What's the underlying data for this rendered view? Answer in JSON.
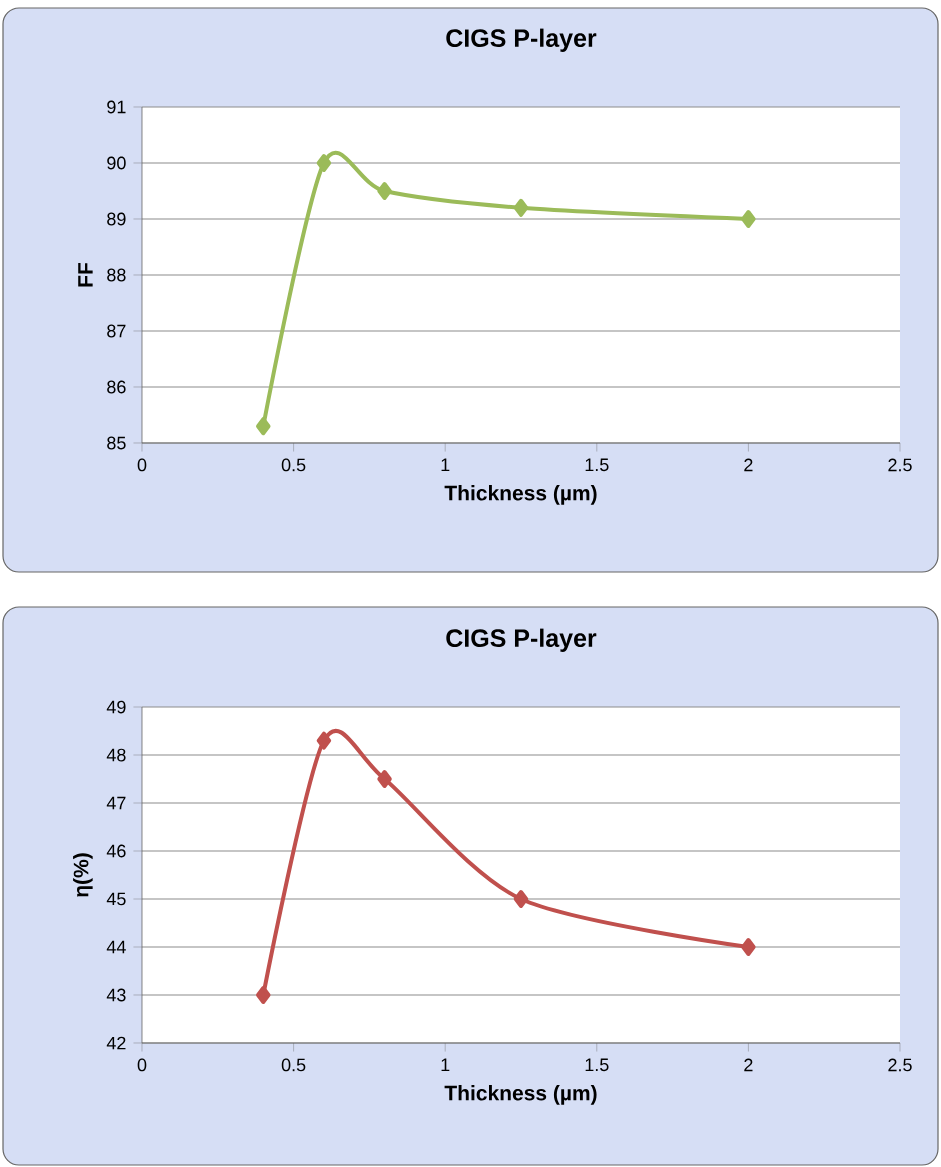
{
  "chart_data": [
    {
      "type": "line",
      "title": "CIGS P-layer",
      "xlabel": "Thickness (µm)",
      "ylabel": "FF",
      "x": [
        0.4,
        0.6,
        0.8,
        1.25,
        2
      ],
      "series": [
        {
          "color": "#9bbb59",
          "values": [
            85.3,
            90,
            89.5,
            89.2,
            89
          ]
        }
      ],
      "xlim": [
        0,
        2.5
      ],
      "ylim": [
        85,
        91
      ],
      "xticks": [
        0,
        0.5,
        1,
        1.5,
        2,
        2.5
      ],
      "yticks": [
        85,
        86,
        87,
        88,
        89,
        90,
        91
      ],
      "grid": "y",
      "marker": "diamond"
    },
    {
      "type": "line",
      "title": "CIGS P-layer",
      "xlabel": "Thickness (µm)",
      "ylabel": "η(%)",
      "x": [
        0.4,
        0.6,
        0.8,
        1.25,
        2
      ],
      "series": [
        {
          "color": "#c0504d",
          "values": [
            43,
            48.3,
            47.5,
            45,
            44
          ]
        }
      ],
      "xlim": [
        0,
        2.5
      ],
      "ylim": [
        42,
        49
      ],
      "xticks": [
        0,
        0.5,
        1,
        1.5,
        2,
        2.5
      ],
      "yticks": [
        42,
        43,
        44,
        45,
        46,
        47,
        48,
        49
      ],
      "grid": "y",
      "marker": "diamond"
    }
  ]
}
